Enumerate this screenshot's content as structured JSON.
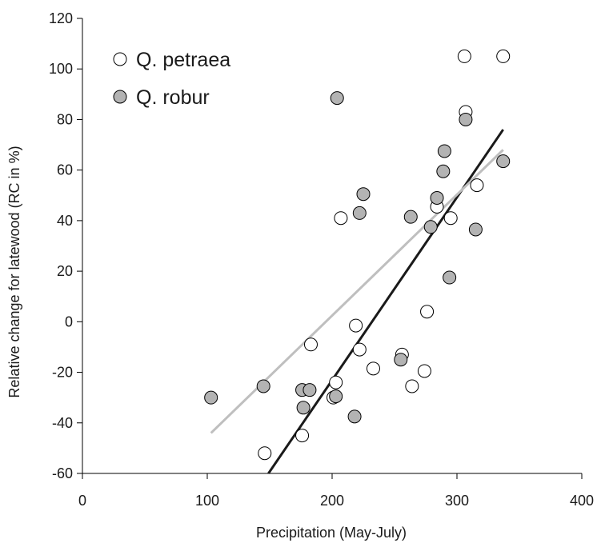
{
  "chart_data": {
    "type": "scatter",
    "xlabel": "Precipitation (May-July)",
    "ylabel": "Relative change for latewood (RC in %)",
    "xlim": [
      0,
      400
    ],
    "ylim": [
      -60,
      120
    ],
    "x_ticks": [
      0,
      100,
      200,
      300,
      400
    ],
    "y_ticks": [
      -60,
      -40,
      -20,
      0,
      20,
      40,
      60,
      80,
      100,
      120
    ],
    "grid": false,
    "legend_position": "top-left",
    "series": [
      {
        "name": "Q. petraea",
        "marker": "open-circle",
        "fill": "#ffffff",
        "stroke": "#000000",
        "points": [
          [
            146,
            -52
          ],
          [
            176,
            -45
          ],
          [
            183,
            -9
          ],
          [
            201,
            -30
          ],
          [
            203,
            -24
          ],
          [
            207,
            41
          ],
          [
            219,
            -1.5
          ],
          [
            222,
            -11
          ],
          [
            233,
            -18.5
          ],
          [
            256,
            -13
          ],
          [
            264,
            -25.5
          ],
          [
            274,
            -19.5
          ],
          [
            276,
            4
          ],
          [
            284,
            45.5
          ],
          [
            295,
            41
          ],
          [
            306,
            105
          ],
          [
            307,
            83
          ],
          [
            316,
            54
          ],
          [
            337,
            105
          ]
        ]
      },
      {
        "name": "Q. robur",
        "marker": "filled-circle",
        "fill": "#b3b3b3",
        "stroke": "#000000",
        "points": [
          [
            103,
            -30
          ],
          [
            145,
            -25.5
          ],
          [
            176,
            -27
          ],
          [
            177,
            -34
          ],
          [
            182,
            -27
          ],
          [
            203,
            -29.5
          ],
          [
            204,
            88.5
          ],
          [
            218,
            -37.5
          ],
          [
            222,
            43
          ],
          [
            225,
            50.5
          ],
          [
            255,
            -15
          ],
          [
            263,
            41.5
          ],
          [
            279,
            37.5
          ],
          [
            284,
            49
          ],
          [
            289,
            59.5
          ],
          [
            290,
            67.5
          ],
          [
            294,
            17.5
          ],
          [
            307,
            80
          ],
          [
            315,
            36.5
          ],
          [
            337,
            63.5
          ]
        ]
      }
    ],
    "trend_lines": [
      {
        "series": "Q. petraea",
        "color": "#1a1a1a",
        "from": [
          149,
          -60
        ],
        "to": [
          337,
          76
        ]
      },
      {
        "series": "Q. robur",
        "color": "#bfbfbf",
        "from": [
          103,
          -44
        ],
        "to": [
          337,
          68
        ]
      }
    ]
  }
}
